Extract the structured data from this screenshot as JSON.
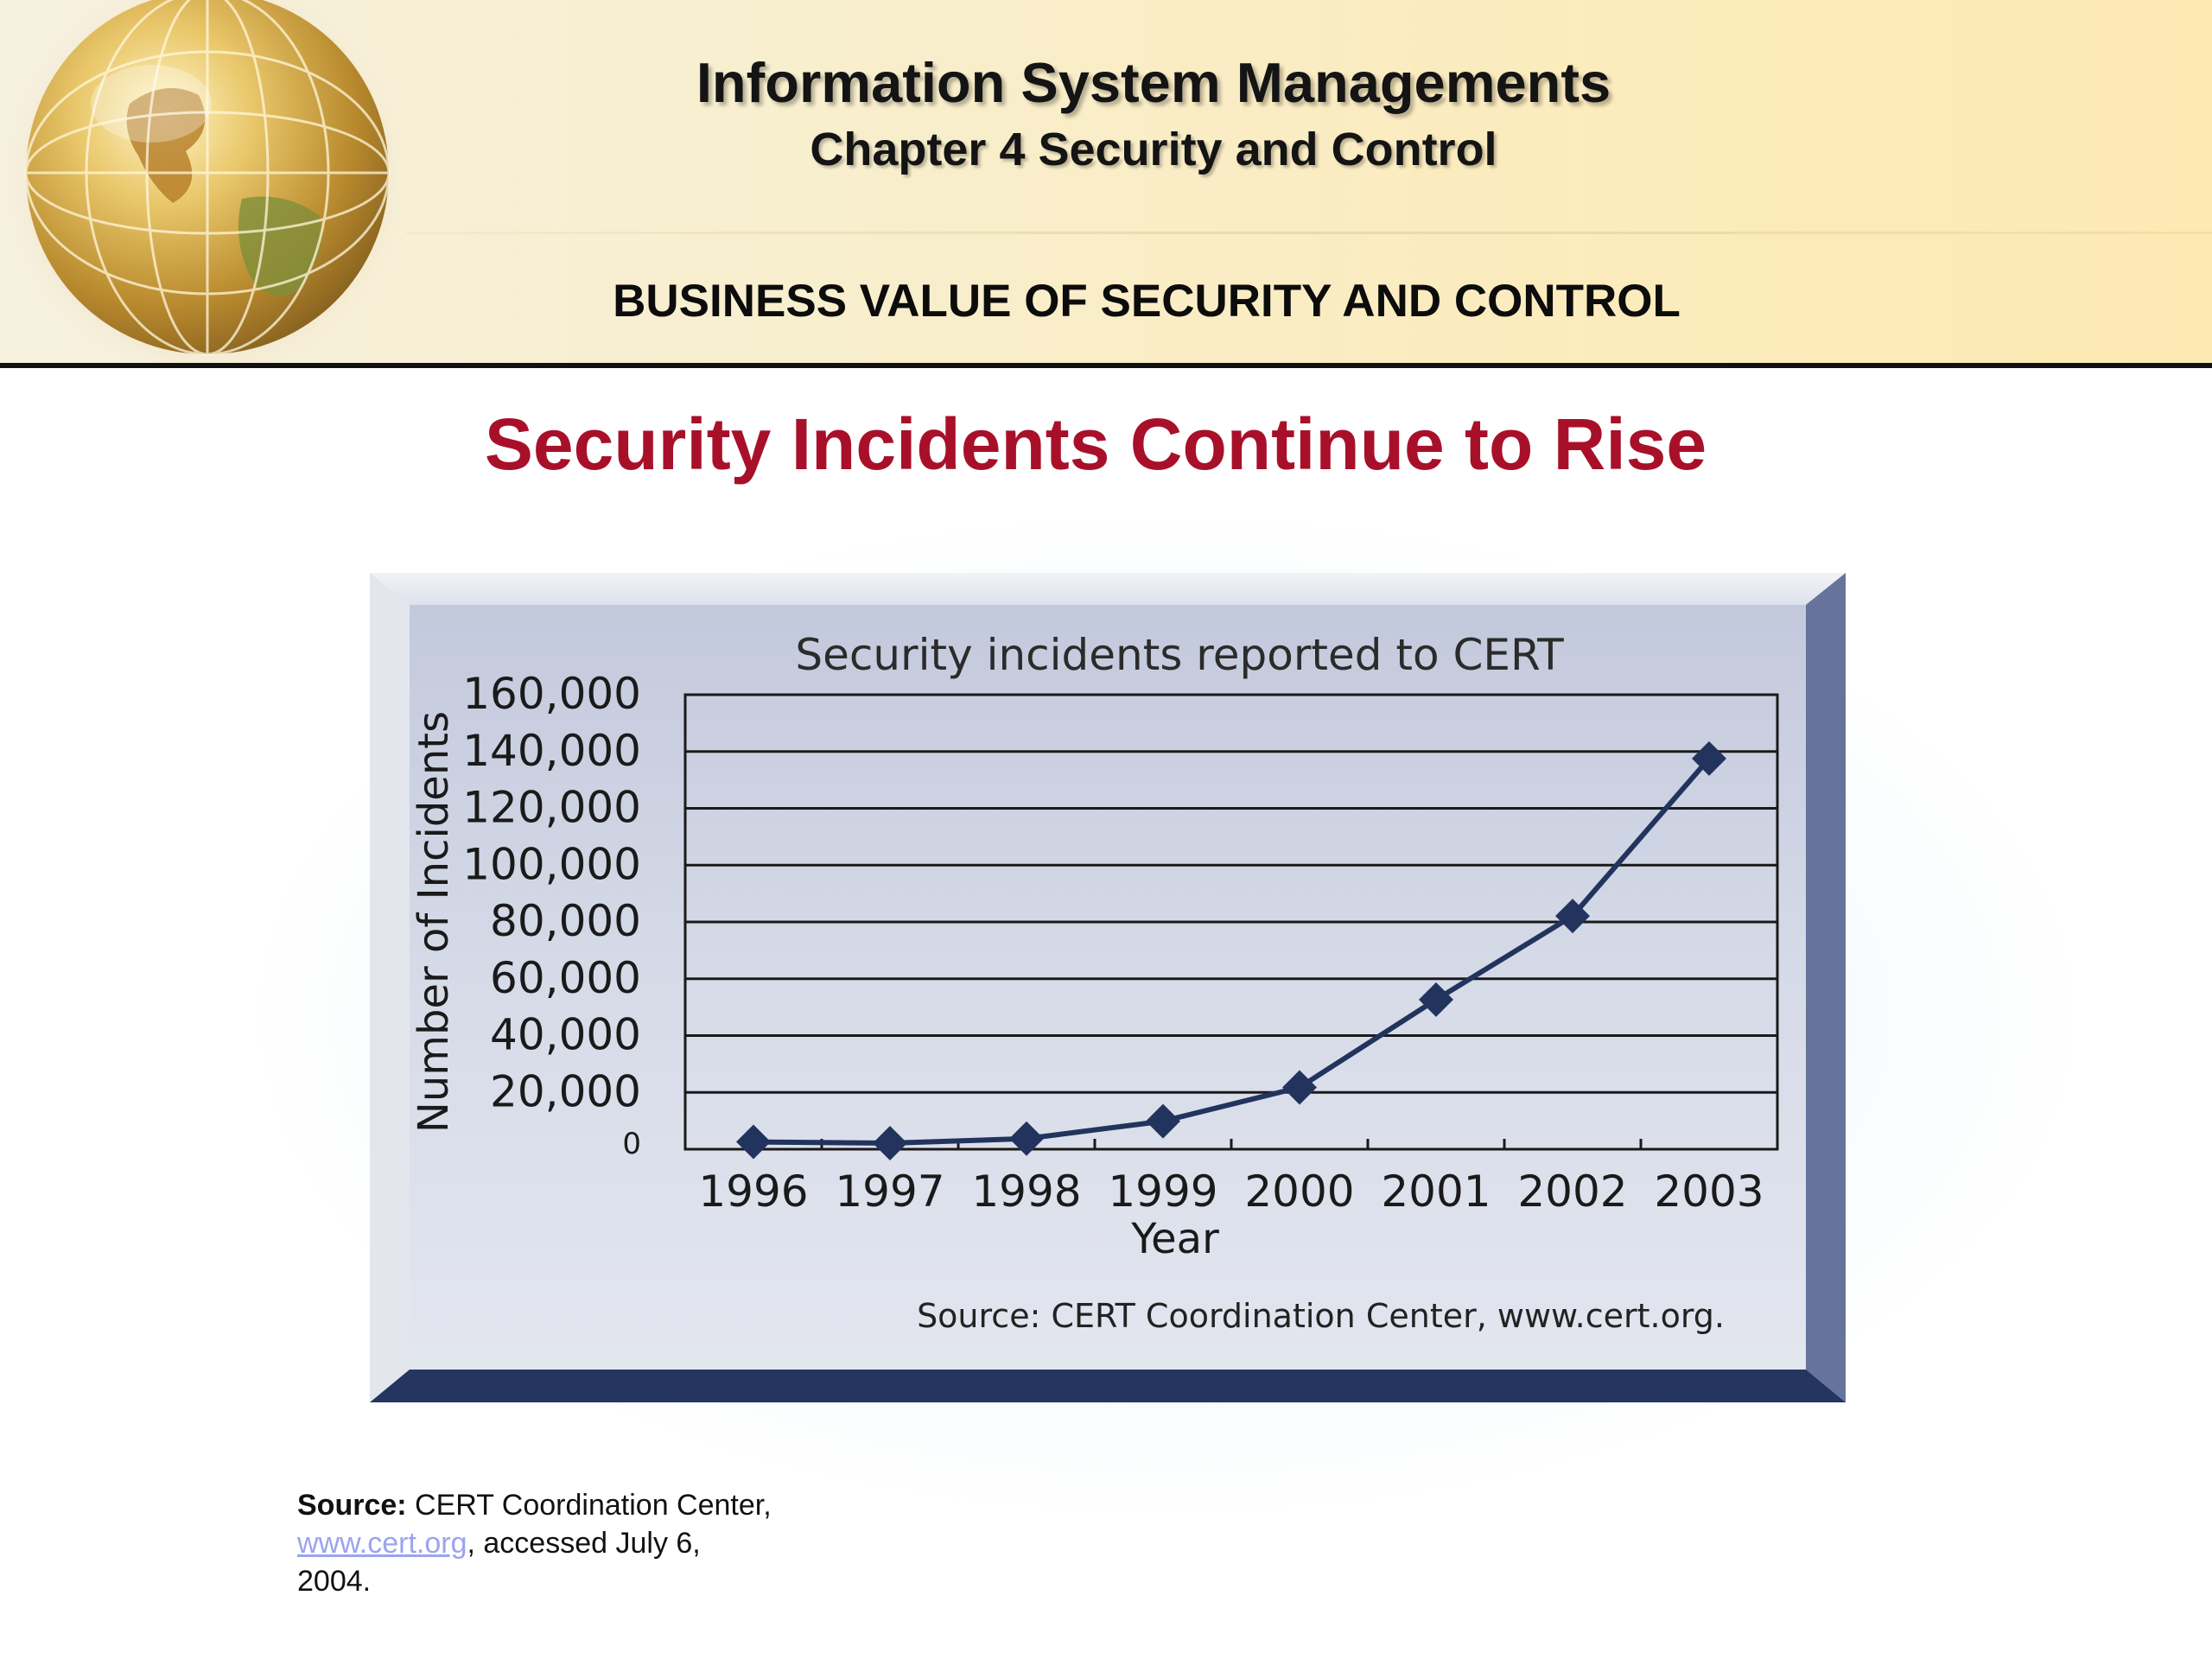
{
  "header": {
    "app_title": "Information System Managements",
    "chapter_title": "Chapter 4 Security and Control",
    "section_title": "BUSINESS VALUE OF SECURITY AND CONTROL"
  },
  "slide": {
    "title": "Security Incidents Continue to Rise"
  },
  "chart_data": {
    "type": "line",
    "title": "Security incidents reported to CERT",
    "xlabel": "Year",
    "ylabel": "Number of Incidents",
    "categories": [
      "1996",
      "1997",
      "1998",
      "1999",
      "2000",
      "2001",
      "2002",
      "2003"
    ],
    "values": [
      2573,
      2134,
      3734,
      9859,
      21756,
      52658,
      82094,
      137529
    ],
    "ylim": [
      0,
      160000
    ],
    "yticks": [
      0,
      20000,
      40000,
      60000,
      80000,
      100000,
      120000,
      140000,
      160000
    ],
    "ytick_labels": [
      "0",
      "20,000",
      "40,000",
      "60,000",
      "80,000",
      "100,000",
      "120,000",
      "140,000",
      "160,000"
    ],
    "grid": true,
    "marker": "diamond",
    "line_color": "#22345e",
    "source": "Source: CERT Coordination Center, www.cert.org."
  },
  "source_note": {
    "label": "Source:",
    "text_before": " CERT Coordination Center, ",
    "link": "www.cert.org",
    "text_after": ", accessed July 6, 2004."
  }
}
